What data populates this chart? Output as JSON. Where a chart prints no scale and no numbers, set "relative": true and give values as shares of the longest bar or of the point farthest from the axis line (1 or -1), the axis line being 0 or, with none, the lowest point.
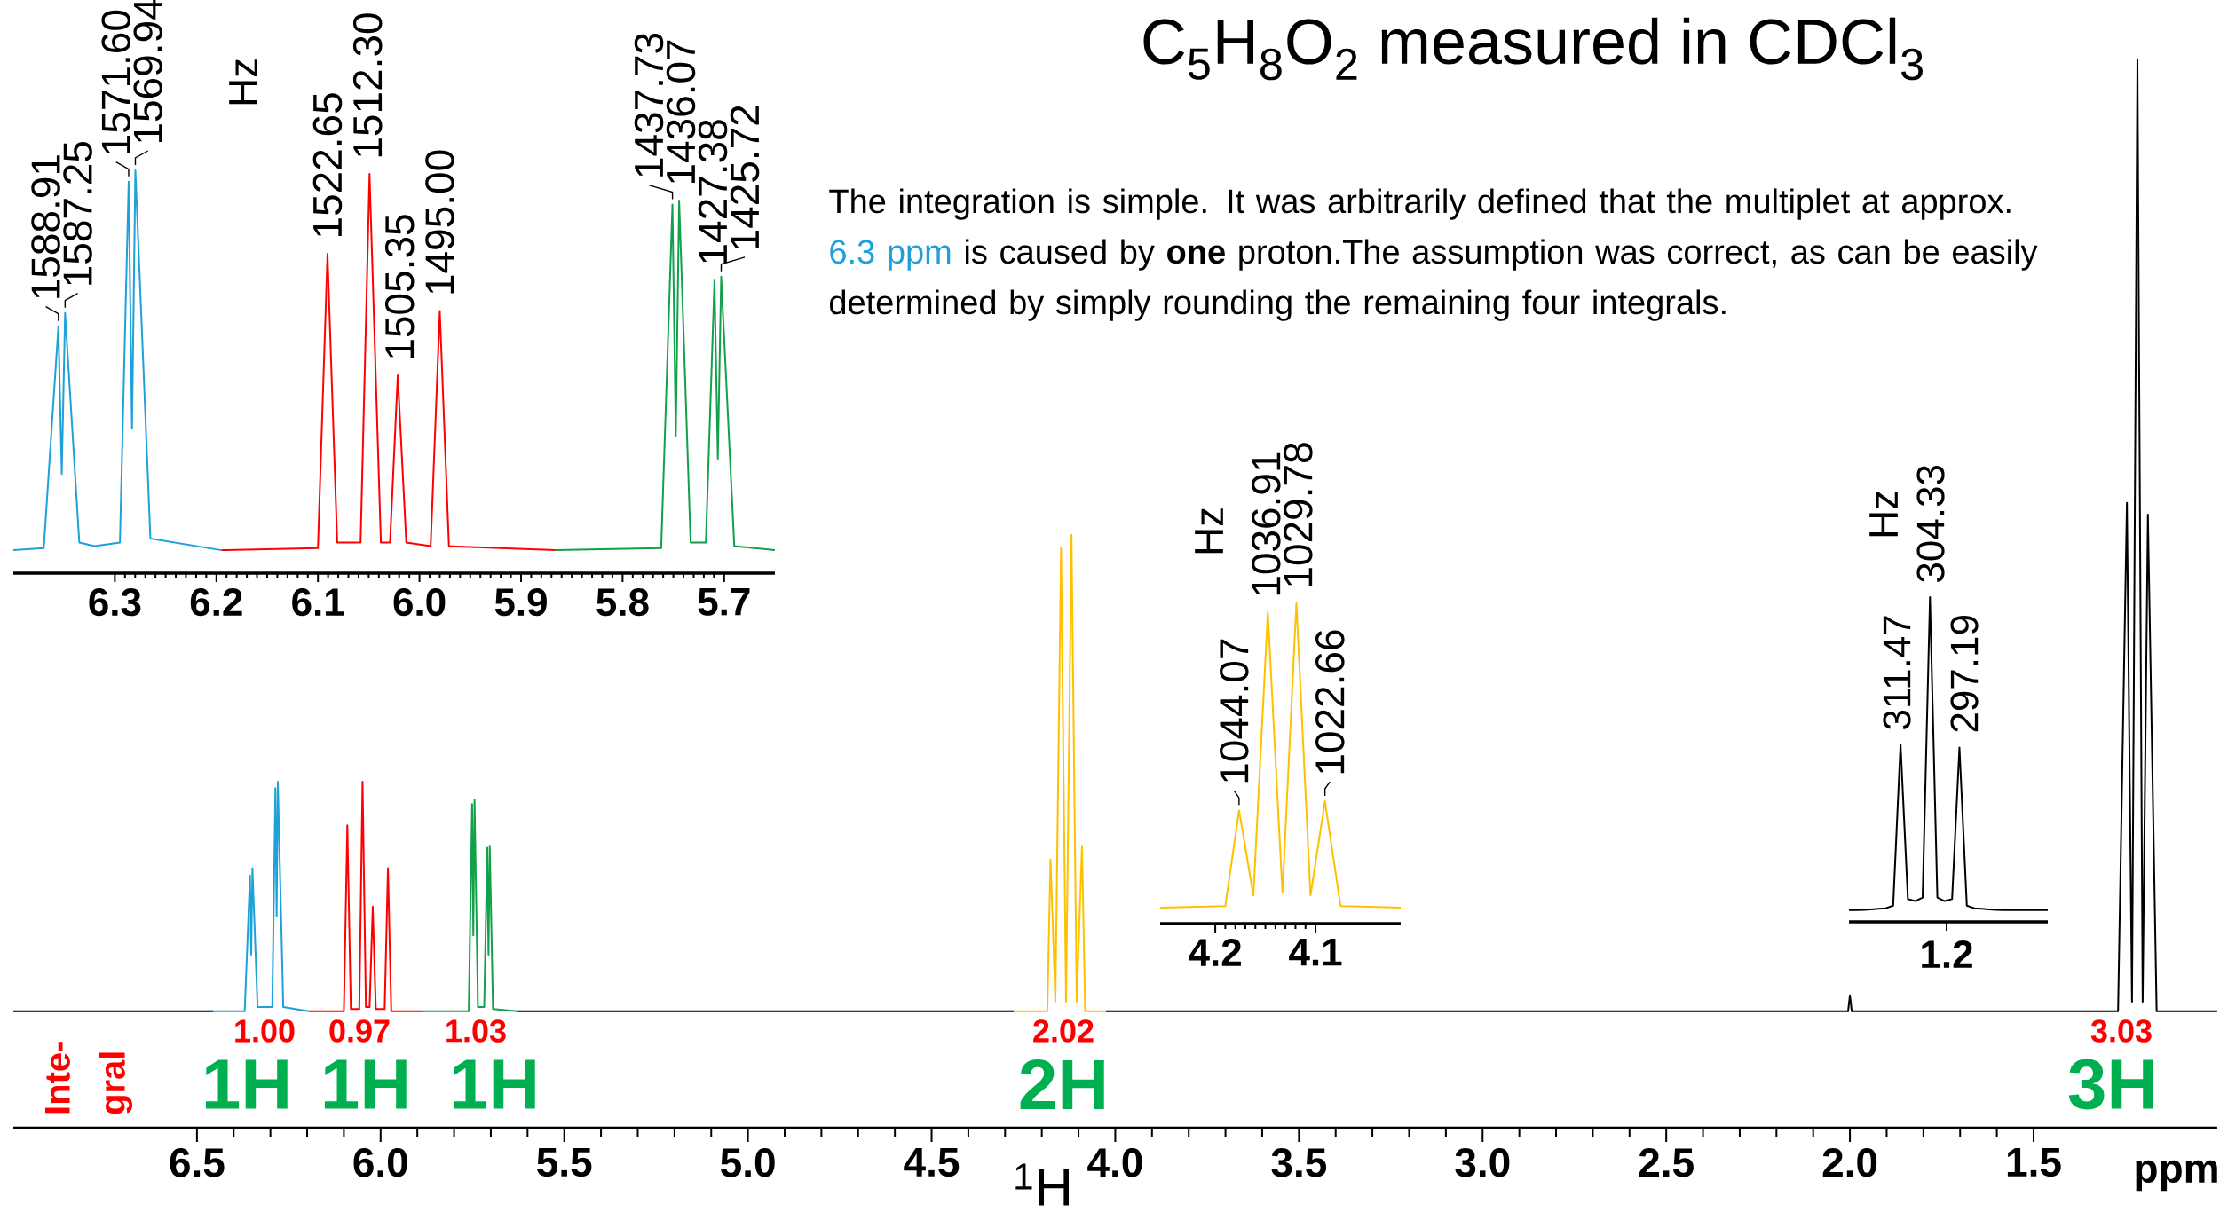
{
  "chart_data": [
    {
      "type": "line",
      "title": "C$_{5}$H$_{8}$O$_{2}$ measured in CDCl$_{3}$",
      "xlabel": "$^{1}$H",
      "xlim": [
        7.0,
        1.0
      ],
      "xticks": [
        6.5,
        {
          "value": 6.0,
          "label": "6.0"
        },
        5.5,
        {
          "value": 5.0,
          "label": "5.0"
        },
        4.5,
        {
          "value": 4.0,
          "label": "4.0"
        },
        3.5,
        {
          "value": 3.0,
          "label": "3.0"
        },
        2.5,
        {
          "value": 2.0,
          "label": "2.0"
        },
        1.5
      ],
      "relative": true,
      "series": [
        {
          "color": "#000000",
          "x": [
            7.0,
            6.455,
            6.45,
            5.627,
            4.276,
            4.27,
            4.026,
            3.0,
            2.005,
            2.0,
            1.995,
            1.27,
            1.2459,
            1.232,
            1.2173,
            1.203,
            1.1888,
            1.165,
            1.0
          ],
          "values": [
            0.109,
            0.109,
            null,
            0.109,
            0.109,
            null,
            0.109,
            0.109,
            0.109,
            0.124,
            0.109,
            0.109,
            0.585,
            0.118,
            1.0,
            0.118,
            0.574,
            0.109,
            0.109
          ]
        },
        {
          "color": "#1ea0d8",
          "x": [
            6.455,
            6.37,
            6.3556,
            6.3523,
            6.349,
            6.335,
            6.295,
            6.2864,
            6.2831,
            6.2798,
            6.265,
            6.196
          ],
          "values": [
            0.109,
            0.109,
            0.236,
            0.162,
            0.243,
            0.113,
            0.113,
            0.318,
            0.198,
            0.324,
            0.113,
            0.109
          ]
        },
        {
          "color": "#ff0000",
          "x": [
            6.196,
            6.1,
            6.0906,
            6.081,
            6.058,
            6.0492,
            6.04,
            6.03,
            6.0214,
            6.013,
            5.989,
            5.98,
            5.971,
            5.886
          ],
          "values": [
            0.109,
            0.109,
            0.283,
            0.111,
            0.111,
            0.324,
            0.113,
            0.113,
            0.207,
            0.111,
            0.111,
            0.243,
            0.109,
            0.109
          ]
        },
        {
          "color": "#13a04a",
          "x": [
            5.886,
            5.76,
            5.7509,
            5.7476,
            5.7443,
            5.735,
            5.718,
            5.7095,
            5.7062,
            5.7029,
            5.694,
            5.627
          ],
          "values": [
            0.109,
            0.109,
            0.303,
            0.18,
            0.307,
            0.113,
            0.113,
            0.262,
            0.162,
            0.264,
            0.111,
            0.109
          ]
        },
        {
          "color": "#ffc000",
          "x": [
            4.276,
            4.185,
            4.1763,
            4.163,
            4.1476,
            4.134,
            4.1191,
            4.105,
            4.0906,
            4.082,
            4.026
          ],
          "values": [
            0.109,
            0.109,
            0.251,
            0.118,
            0.543,
            0.118,
            0.555,
            0.118,
            0.264,
            0.109,
            0.109
          ]
        }
      ],
      "annotations": [
        "Inte-gral",
        "The integration is simple. It was arbitrarily defined that the multiplet at approx.",
        "6.3 ppm",
        "is caused by **one** proton.The assumption was correct, as can be easily determined by simply rounding the remaining four integrals.",
        "ppm",
        "1.00",
        "0.97",
        "1.03",
        "2.02",
        "3.03",
        "1H",
        "1H",
        "1H",
        "2H",
        "3H"
      ]
    },
    {
      "type": "line",
      "xlim": [
        6.4,
        5.65
      ],
      "xticks": [
        6.3,
        6.2,
        6.1,
        {
          "value": 6.0,
          "label": "6.0"
        },
        5.9,
        5.8,
        5.7
      ],
      "relative": true,
      "series": [
        {
          "color": "#1ea0d8",
          "x": [
            6.4,
            6.37,
            6.3556,
            6.3523,
            6.349,
            6.335,
            6.32,
            6.295,
            6.2864,
            6.2831,
            6.2798,
            6.265,
            6.195
          ],
          "values": [
            0.057,
            0.062,
            0.613,
            0.246,
            0.646,
            0.076,
            0.067,
            0.076,
            0.972,
            0.359,
            1.0,
            0.086,
            0.057
          ]
        },
        {
          "color": "#ff0000",
          "x": [
            6.195,
            6.1,
            6.0906,
            6.081,
            6.058,
            6.0492,
            6.038,
            6.029,
            6.0214,
            6.013,
            5.989,
            5.98,
            5.971,
            5.866
          ],
          "values": [
            0.057,
            0.062,
            0.793,
            0.076,
            0.076,
            0.991,
            0.076,
            0.076,
            0.491,
            0.076,
            0.067,
            0.651,
            0.067,
            0.057
          ]
        },
        {
          "color": "#13a04a",
          "x": [
            5.866,
            5.762,
            5.7509,
            5.7476,
            5.7443,
            5.733,
            5.718,
            5.7095,
            5.7062,
            5.7029,
            5.69,
            5.65
          ],
          "values": [
            0.057,
            0.062,
            0.915,
            0.34,
            0.925,
            0.076,
            0.076,
            0.727,
            0.284,
            0.736,
            0.067,
            0.057
          ]
        }
      ],
      "annotations": [
        "Hz",
        {
          "text": "1588.91",
          "x": 6.3556,
          "y": 0.613
        },
        {
          "text": "1587.25",
          "x": 6.349,
          "y": 0.646
        },
        {
          "text": "1571.60",
          "x": 6.2864,
          "y": 0.972
        },
        {
          "text": "1569.94",
          "x": 6.2798,
          "y": 1.0
        },
        {
          "text": "1522.65",
          "x": 6.0906,
          "y": 0.793
        },
        {
          "text": "1512.30",
          "x": 6.0492,
          "y": 0.991
        },
        {
          "text": "1505.35",
          "x": 6.0214,
          "y": 0.491
        },
        {
          "text": "1495.00",
          "x": 5.98,
          "y": 0.651
        },
        {
          "text": "1437.73",
          "x": 5.7509,
          "y": 0.915
        },
        {
          "text": "1436.07",
          "x": 5.7443,
          "y": 0.925
        },
        {
          "text": "1427.38",
          "x": 5.7095,
          "y": 0.727
        },
        {
          "text": "1425.72",
          "x": 5.7029,
          "y": 0.736
        }
      ]
    },
    {
      "type": "line",
      "xlim": [
        4.255,
        4.015
      ],
      "xticks": [
        4.2,
        4.1
      ],
      "relative": true,
      "series": [
        {
          "color": "#ffc000",
          "x": [
            4.255,
            4.19,
            4.1763,
            4.162,
            4.1476,
            4.133,
            4.1191,
            4.105,
            4.0906,
            4.075,
            4.015
          ],
          "values": [
            0.05,
            0.055,
            0.354,
            0.088,
            0.972,
            0.097,
            1.0,
            0.088,
            0.382,
            0.055,
            0.05
          ]
        }
      ],
      "annotations": [
        "Hz",
        {
          "text": "1044.07",
          "x": 4.1763,
          "y": 0.354
        },
        {
          "text": "1036.91",
          "x": 4.1476,
          "y": 0.972
        },
        {
          "text": "1029.78",
          "x": 4.1191,
          "y": 1.0
        },
        {
          "text": "1022.66",
          "x": 4.0906,
          "y": 0.382
        }
      ]
    },
    {
      "type": "line",
      "relative": true,
      "categories": [
        null,
        null,
        null,
        null,
        null,
        null,
        null,
        null,
        null,
        null,
        null,
        null,
        null,
        null,
        null,
        null,
        null,
        null,
        null,
        null,
        null,
        null,
        null,
        null,
        null,
        null,
        null,
        null
      ],
      "series": [
        {
          "color": "#000000",
          "values": [
            0.036,
            0.036,
            0.037,
            0.038,
            0.04,
            0.042,
            0.05,
            0.547,
            0.07,
            0.064,
            0.075,
            1.0,
            0.075,
            0.064,
            0.07,
            0.537,
            0.05,
            0.042,
            0.04,
            0.038,
            0.037,
            0.036,
            0.036,
            0.036,
            0.036,
            0.036,
            0.036,
            0.036
          ]
        }
      ],
      "annotations": [
        "Hz",
        "1.2",
        "311.47",
        "304.33",
        "297.19"
      ]
    }
  ]
}
